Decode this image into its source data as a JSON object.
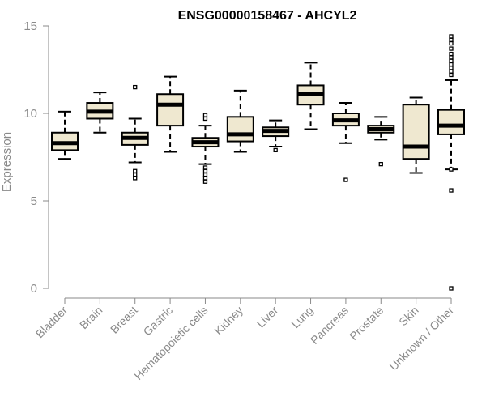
{
  "chart_data": {
    "type": "boxplot",
    "title": "ENSG00000158467 - AHCYL2",
    "ylabel": "Expression",
    "xlabel": "",
    "ylim": [
      0,
      15
    ],
    "yticks": [
      0,
      5,
      10,
      15
    ],
    "grid": false,
    "colors": {
      "box_fill": "#efe8d0",
      "box_stroke": "#000000",
      "median": "#000000",
      "axis": "#8a8a8a",
      "title": "#000000"
    },
    "categories": [
      "Bladder",
      "Brain",
      "Breast",
      "Gastric",
      "Hematopoietic cells",
      "Kidney",
      "Liver",
      "Lung",
      "Pancreas",
      "Prostate",
      "Skin",
      "Unknown / Other"
    ],
    "boxes": [
      {
        "category": "Bladder",
        "whisker_low": 7.4,
        "q1": 7.9,
        "median": 8.3,
        "q3": 8.9,
        "whisker_high": 10.1,
        "outliers": []
      },
      {
        "category": "Brain",
        "whisker_low": 8.9,
        "q1": 9.7,
        "median": 10.1,
        "q3": 10.6,
        "whisker_high": 11.2,
        "outliers": []
      },
      {
        "category": "Breast",
        "whisker_low": 7.2,
        "q1": 8.2,
        "median": 8.6,
        "q3": 8.9,
        "whisker_high": 9.7,
        "outliers": [
          6.3,
          6.5,
          6.7,
          11.5
        ]
      },
      {
        "category": "Gastric",
        "whisker_low": 7.8,
        "q1": 9.3,
        "median": 10.5,
        "q3": 11.1,
        "whisker_high": 12.1,
        "outliers": []
      },
      {
        "category": "Hematopoietic cells",
        "whisker_low": 7.1,
        "q1": 8.1,
        "median": 8.35,
        "q3": 8.6,
        "whisker_high": 9.3,
        "outliers": [
          6.1,
          6.3,
          6.5,
          6.7,
          6.9,
          9.7,
          9.9
        ]
      },
      {
        "category": "Kidney",
        "whisker_low": 7.8,
        "q1": 8.4,
        "median": 8.8,
        "q3": 9.8,
        "whisker_high": 11.3,
        "outliers": []
      },
      {
        "category": "Liver",
        "whisker_low": 8.1,
        "q1": 8.7,
        "median": 9.0,
        "q3": 9.2,
        "whisker_high": 9.6,
        "outliers": [
          7.9
        ]
      },
      {
        "category": "Lung",
        "whisker_low": 9.1,
        "q1": 10.5,
        "median": 11.1,
        "q3": 11.6,
        "whisker_high": 12.9,
        "outliers": []
      },
      {
        "category": "Pancreas",
        "whisker_low": 8.3,
        "q1": 9.3,
        "median": 9.6,
        "q3": 10.0,
        "whisker_high": 10.6,
        "outliers": [
          6.2
        ]
      },
      {
        "category": "Prostate",
        "whisker_low": 8.5,
        "q1": 8.9,
        "median": 9.1,
        "q3": 9.3,
        "whisker_high": 9.8,
        "outliers": [
          7.1
        ]
      },
      {
        "category": "Skin",
        "whisker_low": 6.6,
        "q1": 7.4,
        "median": 8.1,
        "q3": 10.5,
        "whisker_high": 10.9,
        "outliers": []
      },
      {
        "category": "Unknown / Other",
        "whisker_low": 6.8,
        "q1": 8.8,
        "median": 9.3,
        "q3": 10.2,
        "whisker_high": 11.9,
        "outliers": [
          0.0,
          5.6,
          6.8,
          12.2,
          12.4,
          12.6,
          12.8,
          13.0,
          13.2,
          13.4,
          13.7,
          14.0,
          14.2,
          14.4
        ]
      }
    ]
  }
}
